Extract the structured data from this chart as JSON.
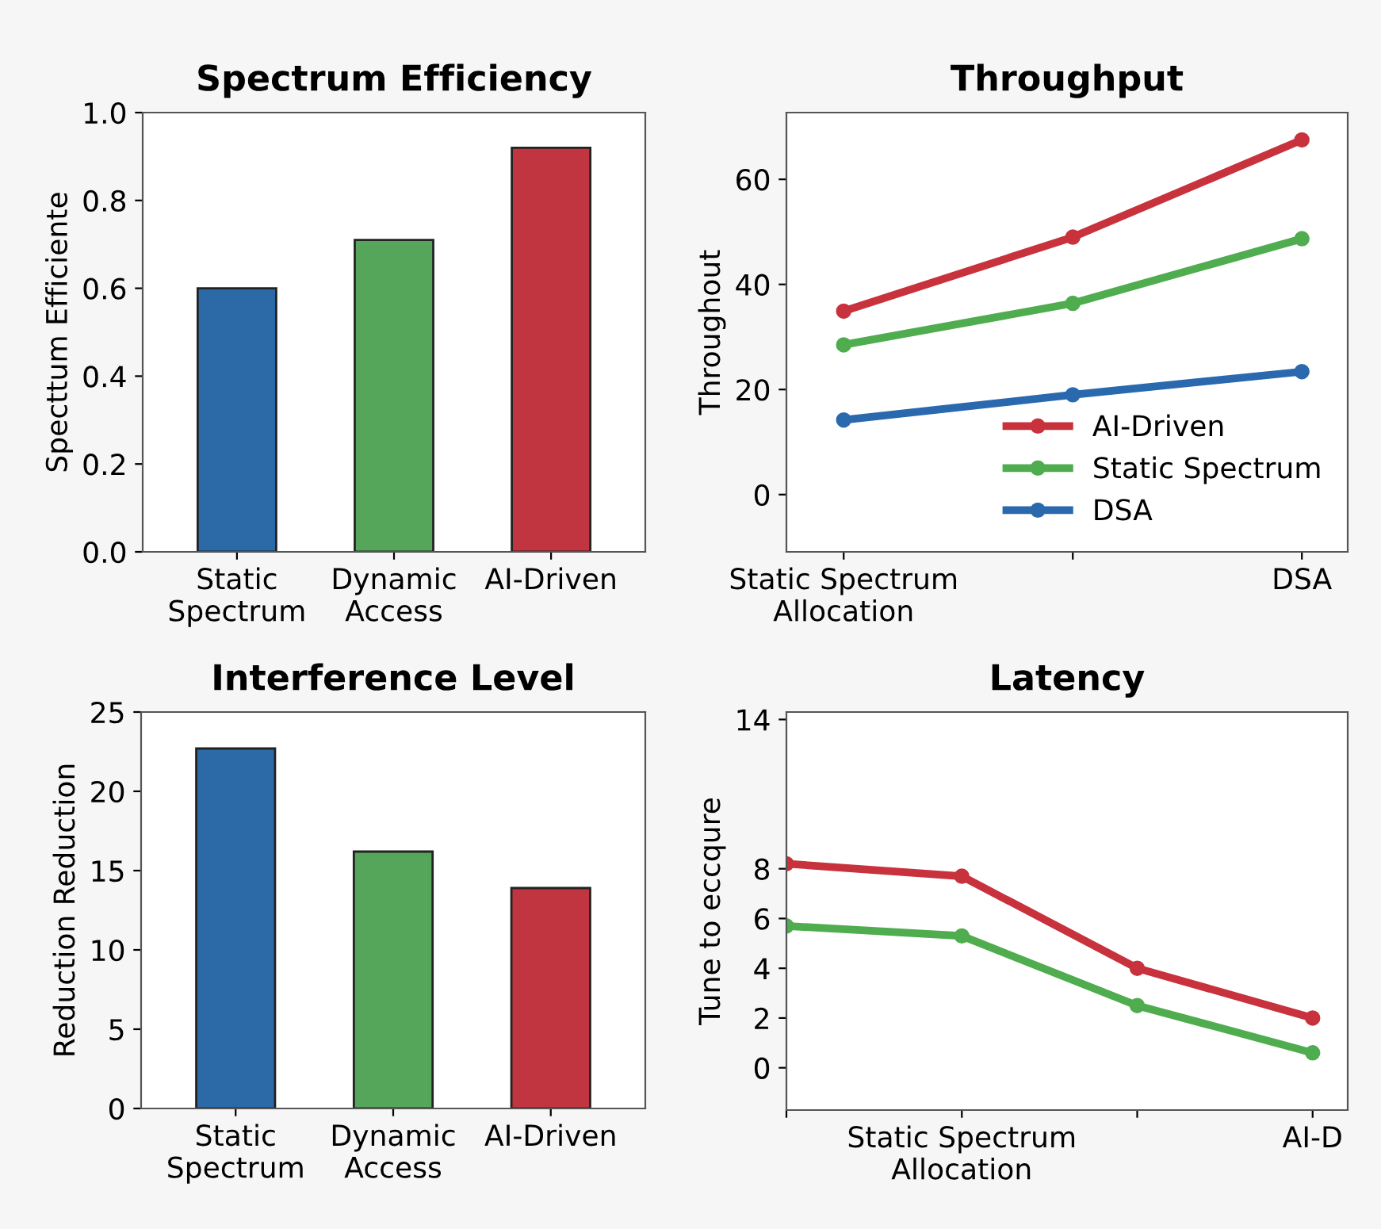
{
  "chart_data": [
    {
      "type": "bar",
      "title": "Spectrum Efficiency",
      "ylabel": "Specttum Efficiente",
      "categories": [
        "Static\nSpectrum",
        "Dynamic\nAccess",
        "AI-Driven"
      ],
      "values": [
        0.6,
        0.71,
        0.92
      ],
      "colors": [
        "#2b6aa6",
        "#55a55a",
        "#c0353f"
      ],
      "ylim": [
        0,
        1
      ],
      "yticks": [
        {
          "value": 0,
          "label": "0.0"
        },
        0.2,
        0.4,
        0.6,
        0.8,
        {
          "value": 1,
          "label": "1.0"
        }
      ]
    },
    {
      "type": "line",
      "title": "Throughput",
      "ylabel": "Throughout",
      "categories": [
        "Static Spectrum\nAllocation",
        null,
        "DSA"
      ],
      "ylim": [
        -10.9,
        72.7
      ],
      "yticks": [
        0,
        20,
        40,
        60
      ],
      "marker": "circle",
      "legend": "bottom right",
      "series": [
        {
          "name": "AI-Driven",
          "color": "#c8323c",
          "values": [
            34.9,
            49,
            67.5
          ]
        },
        {
          "name": "Static Spectrum",
          "color": "#4fac4f",
          "values": [
            28.5,
            36.4,
            48.7
          ]
        },
        {
          "name": "DSA",
          "color": "#2a69ad",
          "values": [
            14.2,
            19,
            23.4
          ]
        }
      ]
    },
    {
      "type": "bar",
      "title": "Interference Level",
      "ylabel": "Reduction Reduction",
      "categories": [
        "Static\nSpectrum",
        "Dynamic\nAccess",
        "AI-Driven"
      ],
      "values": [
        22.7,
        16.2,
        13.9
      ],
      "colors": [
        "#2b6aa6",
        "#55a55a",
        "#c0353f"
      ],
      "ylim": [
        0,
        25
      ],
      "yticks": [
        0,
        5,
        10,
        15,
        20,
        25
      ]
    },
    {
      "type": "line",
      "title": "Latency",
      "ylabel": "Tune to eccqure",
      "categories": [
        null,
        "Static Spectrum\nAllocation",
        null,
        "AI-D"
      ],
      "ylim": [
        -1.7,
        14.3
      ],
      "yticks": [
        0,
        2,
        4,
        6,
        8,
        14
      ],
      "marker": "circle",
      "series": [
        {
          "color": "#c8323c",
          "values": [
            8.2,
            7.7,
            4.0,
            2.0
          ]
        },
        {
          "color": "#4fac4f",
          "values": [
            5.7,
            5.3,
            2.5,
            0.6
          ]
        }
      ]
    }
  ]
}
